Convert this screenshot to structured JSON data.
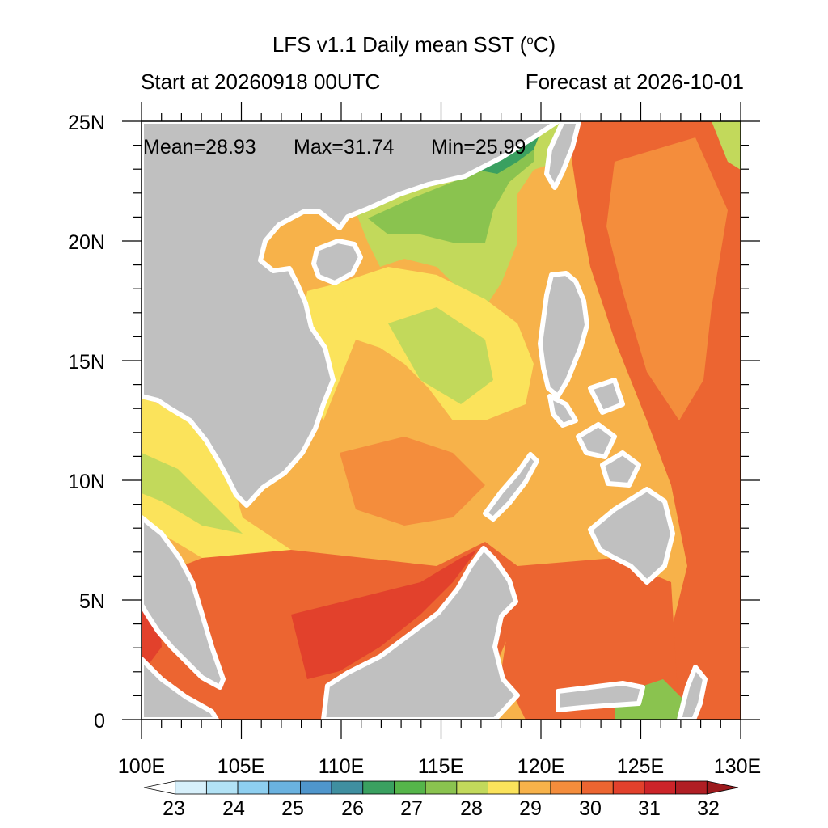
{
  "header": {
    "title": "LFS v1.1 Daily mean SST (",
    "title_unit_sup": "o",
    "title_unit_tail": "C)",
    "start_label": "Start at 20260918 00UTC",
    "forecast_label": "Forecast at 2026-10-01"
  },
  "stats": {
    "mean_label": "Mean=28.93",
    "max_label": "Max=31.74",
    "min_label": "Min=25.99"
  },
  "axes": {
    "lat_labels": [
      "25N",
      "20N",
      "15N",
      "10N",
      "5N",
      "0"
    ],
    "lon_labels": [
      "100E",
      "105E",
      "110E",
      "115E",
      "120E",
      "125E",
      "130E"
    ],
    "lon_range": [
      100,
      130
    ],
    "lat_range": [
      0,
      25
    ]
  },
  "colorbar": {
    "labels": [
      "23",
      "24",
      "25",
      "26",
      "27",
      "28",
      "29",
      "30",
      "31",
      "32"
    ],
    "colors": [
      "#ffffff",
      "#d7f0fb",
      "#b2e2f5",
      "#8ecff0",
      "#6ab2e0",
      "#4f96cc",
      "#3f8fa0",
      "#3aa060",
      "#55b54a",
      "#8ac34f",
      "#c2d95b",
      "#fbe35b",
      "#f7b24a",
      "#f48d3c",
      "#ec6531",
      "#e2412c",
      "#cc2429",
      "#b01e24",
      "#9c1a1d"
    ]
  },
  "legend_colors": {
    "land": "#c0c0c0",
    "coast_halo": "#ffffff"
  }
}
